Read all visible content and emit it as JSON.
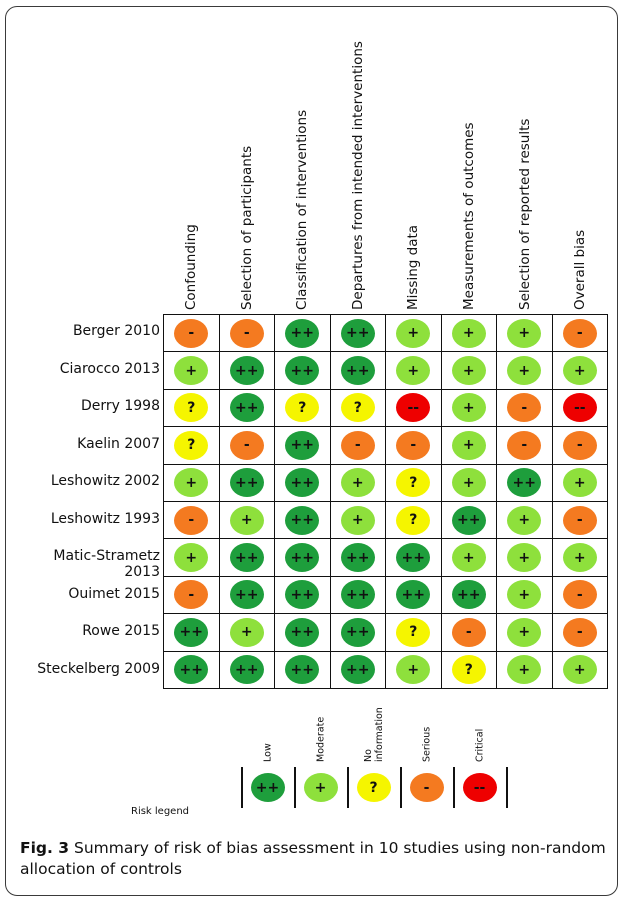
{
  "columns": [
    "Confounding",
    "Selection of participants",
    "Classification of interventions",
    "Departures from intended interventions",
    "Missing data",
    "Measurements of outcomes",
    "Selection of reported results",
    "Overall bias"
  ],
  "rows": [
    {
      "study": "Berger 2010",
      "ratings": [
        "-",
        "-",
        "++",
        "++",
        "+",
        "+",
        "+",
        "-"
      ]
    },
    {
      "study": "Ciarocco 2013",
      "ratings": [
        "+",
        "++",
        "++",
        "++",
        "+",
        "+",
        "+",
        "+"
      ]
    },
    {
      "study": "Derry 1998",
      "ratings": [
        "?",
        "++",
        "?",
        "?",
        "--",
        "+",
        "-",
        "--"
      ]
    },
    {
      "study": "Kaelin 2007",
      "ratings": [
        "?",
        "-",
        "++",
        "-",
        "-",
        "+",
        "-",
        "-"
      ]
    },
    {
      "study": "Leshowitz 2002",
      "ratings": [
        "+",
        "++",
        "++",
        "+",
        "?",
        "+",
        "++",
        "+"
      ]
    },
    {
      "study": "Leshowitz 1993",
      "ratings": [
        "-",
        "+",
        "++",
        "+",
        "?",
        "++",
        "+",
        "-"
      ]
    },
    {
      "study": "Matic-Strametz 2013",
      "ratings": [
        "+",
        "++",
        "++",
        "++",
        "++",
        "+",
        "+",
        "+"
      ]
    },
    {
      "study": "Ouimet 2015",
      "ratings": [
        "-",
        "++",
        "++",
        "++",
        "++",
        "++",
        "+",
        "-"
      ]
    },
    {
      "study": "Rowe 2015",
      "ratings": [
        "++",
        "+",
        "++",
        "++",
        "?",
        "-",
        "+",
        "-"
      ]
    },
    {
      "study": "Steckelberg 2009",
      "ratings": [
        "++",
        "++",
        "++",
        "++",
        "+",
        "?",
        "+",
        "+"
      ]
    }
  ],
  "rating_colors": {
    "++": "#1e9e3c",
    "+": "#8ee03c",
    "?": "#f5f500",
    "-": "#f47a20",
    "--": "#ee0000"
  },
  "legend": {
    "title": "Risk legend",
    "items": [
      {
        "label": "Low",
        "symbol": "++"
      },
      {
        "label": "Moderate",
        "symbol": "+"
      },
      {
        "label": "No\ninformation",
        "symbol": "?"
      },
      {
        "label": "Serious",
        "symbol": "-"
      },
      {
        "label": "Critical",
        "symbol": "--"
      }
    ]
  },
  "caption": {
    "fig_label": "Fig. 3",
    "text": "Summary of risk of bias assessment in 10 studies using non-random allocation of controls"
  }
}
